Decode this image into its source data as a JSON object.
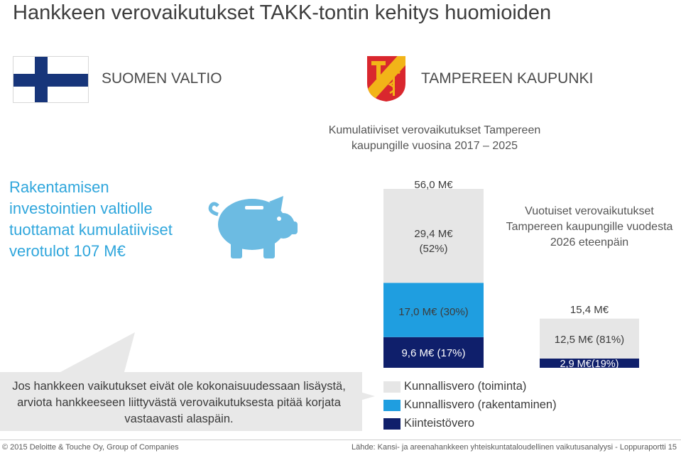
{
  "title": "Hankkeen verovaikutukset TAKK-tontin kehitys huomioiden",
  "state": {
    "name": "SUOMEN VALTIO",
    "flag": "finland-flag-icon"
  },
  "city": {
    "name": "TAMPEREEN KAUPUNKI",
    "coat_of_arms": "tampere-coat-of-arms-icon"
  },
  "left_text": "Rakentamisen investointien valtiolle tuottamat kumulatiiviset verotulot 107 M€",
  "piggy_icon": "piggy-bank-icon",
  "cumulative": {
    "heading": "Kumulatiiviset verovaikutukset Tampereen kaupungille vuosina 2017 – 2025",
    "total_label": "56,0 M€",
    "segments": [
      {
        "key": "toiminta",
        "label1": "29,4 M€",
        "label2": "(52%)"
      },
      {
        "key": "rakentaminen",
        "label1": "17,0 M€ (30%)"
      },
      {
        "key": "kiinteisto",
        "label1": "9,6 M€ (17%)"
      }
    ]
  },
  "annual": {
    "heading": "Vuotuiset verovaikutukset Tampereen kaupungille vuodesta 2026 eteenpäin",
    "total_label": "15,4 M€",
    "segments": [
      {
        "key": "toiminta",
        "label1": "12,5 M€ (81%)"
      },
      {
        "key": "kiinteisto",
        "label1": "2,9 M€(19%)"
      }
    ]
  },
  "callout_text": "Jos hankkeen vaikutukset eivät ole kokonaisuudessaan lisäystä, arviota hankkeeseen liittyvästä verovaikutuksesta pitää korjata vastaavasti alaspäin.",
  "legend": [
    {
      "label": "Kunnallisvero (toiminta)",
      "color": "#e6e6e6"
    },
    {
      "label": "Kunnallisvero (rakentaminen)",
      "color": "#1f9ee0"
    },
    {
      "label": "Kiinteistövero",
      "color": "#0f1f6b"
    }
  ],
  "colors": {
    "toiminta": "#e6e6e6",
    "rakentaminen": "#1f9ee0",
    "kiinteisto": "#0f1f6b",
    "accent": "#2fa6dc",
    "flag_blue": "#17357a"
  },
  "footer": {
    "left": "© 2015 Deloitte & Touche Oy, Group of Companies",
    "right": "Lähde: Kansi- ja areenahankkeen yhteiskuntataloudellinen vaikutusanalyysi - Loppuraportti   15"
  },
  "chart_data": [
    {
      "type": "bar",
      "stacked": true,
      "title": "Kumulatiiviset verovaikutukset Tampereen kaupungille vuosina 2017 – 2025",
      "unit": "M€",
      "total": 56.0,
      "series": [
        {
          "name": "Kunnallisvero (toiminta)",
          "values": [
            29.4
          ],
          "share": 52
        },
        {
          "name": "Kunnallisvero (rakentaminen)",
          "values": [
            17.0
          ],
          "share": 30
        },
        {
          "name": "Kiinteistövero",
          "values": [
            9.6
          ],
          "share": 17
        }
      ]
    },
    {
      "type": "bar",
      "stacked": true,
      "title": "Vuotuiset verovaikutukset Tampereen kaupungille vuodesta 2026 eteenpäin",
      "unit": "M€",
      "total": 15.4,
      "series": [
        {
          "name": "Kunnallisvero (toiminta)",
          "values": [
            12.5
          ],
          "share": 81
        },
        {
          "name": "Kiinteistövero",
          "values": [
            2.9
          ],
          "share": 19
        }
      ]
    }
  ]
}
